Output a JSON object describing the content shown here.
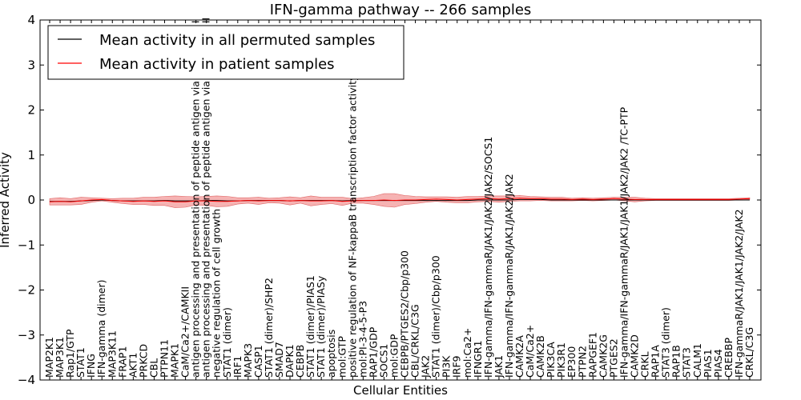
{
  "chart_data": {
    "type": "line",
    "title": "IFN-gamma pathway -- 266 samples",
    "xlabel": "Cellular Entities",
    "ylabel": "Inferred Activity",
    "ylim": [
      -4,
      4
    ],
    "yticks": [
      "4",
      "3",
      "2",
      "1",
      "0",
      "−1",
      "−2",
      "−3",
      "−4"
    ],
    "legend": {
      "position": "top-left",
      "entries": [
        {
          "name": "Mean activity in all permuted samples",
          "color": "#000000"
        },
        {
          "name": "Mean activity in patient samples",
          "color": "#ff0000"
        }
      ]
    },
    "categories": [
      "MAP2K1",
      "MAP3K1",
      "Rap1/GTP",
      "STAT1",
      "IFNG",
      "IFN-gamma (dimer)",
      "MAP3K11",
      "FRAP1",
      "AKT1",
      "PRKCD",
      "CBL",
      "PTPN11",
      "MAPK1",
      "CaM/Ca2+/CAMKII",
      "antigen processing and presentation of peptide antigen via MHC class I",
      "antigen processing and presentation of peptide antigen via MHC class II",
      "negative regulation of cell growth",
      "STAT1 (dimer)",
      "IRF1",
      "MAPK3",
      "CASP1",
      "STAT1 (dimer)/SHP2",
      "SMAD7",
      "DAPK1",
      "CEBPB",
      "STAT1 (dimer)/PIAS1",
      "STAT1 (dimer)/PIASy",
      "apoptosis",
      "mol:GTP",
      "positive regulation of NF-kappaB transcription factor activity",
      "mol:PI-3-4-5-P3",
      "RAP1/GDP",
      "SOCS1",
      "mol:GDP",
      "CEBPB/PTGES2/Cbp/p300",
      "CBL/CRKL/C3G",
      "JAK2",
      "STAT1 (dimer)/Cbp/p300",
      "PI3K",
      "IRF9",
      "mol:Ca2+",
      "IFNGR1",
      "IFN-gamma/IFN-gammaR/JAK1/JAK2/JAK2/SOCS1",
      "JAK1",
      "IFN-gamma/IFN-gammaR/JAK1/JAK2/JAK2",
      "CAMK2A",
      "CaM/Ca2+",
      "CAMK2B",
      "PIK3CA",
      "PIK3R1",
      "EP300",
      "PTPN2",
      "RAPGEF1",
      "CAMK2G",
      "PTGES2",
      "IFN-gamma/IFN-gammaR/JAK1/JAK1/JAK2/JAK2  /TC-PTP",
      "CAMK2D",
      "CRKL",
      "RAP1A",
      "STAT3 (dimer)",
      "RAP1B",
      "STAT3",
      "CALM1",
      "PIAS1",
      "PIAS4",
      "CREBBP",
      "IFN-gammaR/JAK1/JAK1/JAK2/JAK2",
      "CRKL/C3G"
    ],
    "series": [
      {
        "name": "Mean activity in all permuted samples",
        "color": "#000000",
        "values": [
          -0.03,
          -0.03,
          -0.03,
          -0.02,
          -0.01,
          0.0,
          -0.01,
          -0.02,
          -0.02,
          -0.02,
          -0.02,
          -0.01,
          -0.02,
          -0.02,
          -0.02,
          -0.01,
          -0.01,
          -0.02,
          -0.02,
          -0.01,
          -0.01,
          -0.01,
          -0.01,
          -0.02,
          -0.01,
          -0.01,
          -0.01,
          -0.01,
          -0.02,
          -0.01,
          -0.01,
          -0.01,
          -0.01,
          -0.01,
          -0.01,
          -0.01,
          -0.01,
          -0.01,
          -0.01,
          -0.01,
          -0.01,
          0.0,
          0.0,
          0.0,
          0.0,
          0.01,
          0.01,
          0.01,
          0.0,
          0.0,
          0.0,
          0.0,
          0.0,
          0.0,
          0.0,
          0.0,
          0.0,
          0.0,
          0.0,
          0.0,
          0.0,
          0.0,
          0.0,
          0.0,
          0.0,
          0.0,
          0.0,
          0.0
        ]
      },
      {
        "name": "Mean activity in patient samples",
        "color": "#ff0000",
        "values": [
          -0.04,
          -0.03,
          -0.04,
          -0.02,
          0.0,
          0.01,
          -0.01,
          -0.02,
          -0.03,
          -0.02,
          -0.03,
          -0.02,
          -0.04,
          -0.04,
          -0.02,
          -0.02,
          -0.03,
          -0.03,
          -0.02,
          -0.01,
          -0.02,
          -0.01,
          -0.01,
          -0.02,
          -0.01,
          -0.02,
          -0.02,
          -0.01,
          -0.03,
          -0.02,
          -0.01,
          -0.01,
          0.0,
          -0.01,
          0.0,
          0.0,
          0.01,
          0.02,
          0.01,
          0.0,
          0.01,
          0.02,
          0.03,
          0.02,
          0.03,
          0.04,
          0.03,
          0.03,
          0.02,
          0.02,
          0.01,
          0.02,
          0.01,
          0.02,
          0.03,
          0.02,
          0.01,
          0.01,
          0.01,
          0.01,
          0.01,
          0.01,
          0.01,
          0.01,
          0.01,
          0.01,
          0.02,
          0.03
        ]
      }
    ],
    "band_spread": [
      0.07,
      0.08,
      0.07,
      0.08,
      0.05,
      0.03,
      0.04,
      0.06,
      0.07,
      0.08,
      0.09,
      0.1,
      0.13,
      0.12,
      0.09,
      0.1,
      0.12,
      0.11,
      0.07,
      0.06,
      0.08,
      0.05,
      0.06,
      0.09,
      0.06,
      0.11,
      0.08,
      0.07,
      0.09,
      0.05,
      0.06,
      0.09,
      0.14,
      0.15,
      0.1,
      0.08,
      0.06,
      0.05,
      0.06,
      0.06,
      0.07,
      0.06,
      0.06,
      0.07,
      0.06,
      0.06,
      0.05,
      0.04,
      0.04,
      0.04,
      0.03,
      0.03,
      0.03,
      0.03,
      0.03,
      0.04,
      0.05,
      0.03,
      0.02,
      0.02,
      0.02,
      0.02,
      0.02,
      0.02,
      0.02,
      0.02,
      0.02,
      0.02
    ]
  }
}
